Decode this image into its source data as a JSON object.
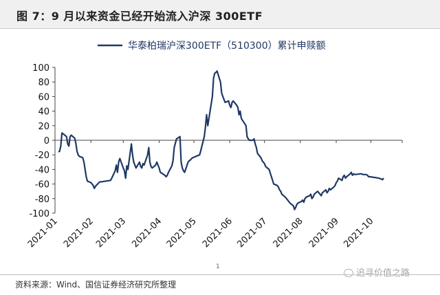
{
  "figure": {
    "title": "图 7：9 月以来资金已经开始流入沪深 300ETF",
    "source": "资料来源：Wind、国信证券经济研究所整理",
    "page_number": "1",
    "watermark": "追寻价值之路"
  },
  "chart_data": {
    "type": "line",
    "title": "",
    "xlabel": "",
    "ylabel": "",
    "ylim": [
      -100,
      100
    ],
    "yticks": [
      100,
      80,
      60,
      40,
      20,
      0,
      -20,
      -40,
      -60,
      -80,
      -100
    ],
    "xticks": [
      "2021-01",
      "2021-02",
      "2021-03",
      "2021-04",
      "2021-05",
      "2021-06",
      "2021-07",
      "2021-08",
      "2021-09",
      "2021-10"
    ],
    "legend_position": "top-center",
    "grid": false,
    "series": [
      {
        "name": "华泰柏瑞沪深300ETF（510300）累计申赎额",
        "color": "#1f3864",
        "points": [
          [
            "2021-01-04",
            -16
          ],
          [
            "2021-01-05",
            -15
          ],
          [
            "2021-01-06",
            -8
          ],
          [
            "2021-01-07",
            10
          ],
          [
            "2021-01-08",
            9
          ],
          [
            "2021-01-11",
            5
          ],
          [
            "2021-01-12",
            -5
          ],
          [
            "2021-01-13",
            -8
          ],
          [
            "2021-01-14",
            5
          ],
          [
            "2021-01-15",
            7
          ],
          [
            "2021-01-18",
            3
          ],
          [
            "2021-01-19",
            -4
          ],
          [
            "2021-01-20",
            -15
          ],
          [
            "2021-01-21",
            -20
          ],
          [
            "2021-01-22",
            -22
          ],
          [
            "2021-01-25",
            -24
          ],
          [
            "2021-01-26",
            -30
          ],
          [
            "2021-01-27",
            -40
          ],
          [
            "2021-01-28",
            -50
          ],
          [
            "2021-01-29",
            -56
          ],
          [
            "2021-02-01",
            -58
          ],
          [
            "2021-02-02",
            -60
          ],
          [
            "2021-02-03",
            -62
          ],
          [
            "2021-02-04",
            -66
          ],
          [
            "2021-02-05",
            -63
          ],
          [
            "2021-02-08",
            -58
          ],
          [
            "2021-02-09",
            -57
          ],
          [
            "2021-02-10",
            -57
          ],
          [
            "2021-02-18",
            -55
          ],
          [
            "2021-02-19",
            -52
          ],
          [
            "2021-02-22",
            -42
          ],
          [
            "2021-02-23",
            -34
          ],
          [
            "2021-02-24",
            -44
          ],
          [
            "2021-02-25",
            -30
          ],
          [
            "2021-02-26",
            -25
          ],
          [
            "2021-03-01",
            -38
          ],
          [
            "2021-03-02",
            -42
          ],
          [
            "2021-03-03",
            -52
          ],
          [
            "2021-03-04",
            -35
          ],
          [
            "2021-03-05",
            -40
          ],
          [
            "2021-03-08",
            -5
          ],
          [
            "2021-03-09",
            -20
          ],
          [
            "2021-03-10",
            -30
          ],
          [
            "2021-03-11",
            -34
          ],
          [
            "2021-03-12",
            -38
          ],
          [
            "2021-03-15",
            -30
          ],
          [
            "2021-03-16",
            -36
          ],
          [
            "2021-03-17",
            -38
          ],
          [
            "2021-03-18",
            -32
          ],
          [
            "2021-03-19",
            -34
          ],
          [
            "2021-03-22",
            -20
          ],
          [
            "2021-03-23",
            -10
          ],
          [
            "2021-03-24",
            -30
          ],
          [
            "2021-03-25",
            -36
          ],
          [
            "2021-03-26",
            -38
          ],
          [
            "2021-03-29",
            -34
          ],
          [
            "2021-03-30",
            -30
          ],
          [
            "2021-03-31",
            -34
          ],
          [
            "2021-04-01",
            -38
          ],
          [
            "2021-04-02",
            -44
          ],
          [
            "2021-04-06",
            -48
          ],
          [
            "2021-04-07",
            -50
          ],
          [
            "2021-04-08",
            -48
          ],
          [
            "2021-04-09",
            -44
          ],
          [
            "2021-04-12",
            -35
          ],
          [
            "2021-04-13",
            -28
          ],
          [
            "2021-04-14",
            -10
          ],
          [
            "2021-04-15",
            -4
          ],
          [
            "2021-04-16",
            2
          ],
          [
            "2021-04-19",
            5
          ],
          [
            "2021-04-20",
            -30
          ],
          [
            "2021-04-21",
            -38
          ],
          [
            "2021-04-22",
            -42
          ],
          [
            "2021-04-23",
            -44
          ],
          [
            "2021-04-26",
            -30
          ],
          [
            "2021-04-27",
            -28
          ],
          [
            "2021-04-28",
            -27
          ],
          [
            "2021-04-29",
            -25
          ],
          [
            "2021-04-30",
            -24
          ],
          [
            "2021-05-06",
            -20
          ],
          [
            "2021-05-07",
            -14
          ],
          [
            "2021-05-10",
            5
          ],
          [
            "2021-05-11",
            18
          ],
          [
            "2021-05-12",
            35
          ],
          [
            "2021-05-13",
            20
          ],
          [
            "2021-05-14",
            30
          ],
          [
            "2021-05-17",
            60
          ],
          [
            "2021-05-18",
            85
          ],
          [
            "2021-05-19",
            92
          ],
          [
            "2021-05-20",
            93
          ],
          [
            "2021-05-21",
            95
          ],
          [
            "2021-05-24",
            80
          ],
          [
            "2021-05-25",
            65
          ],
          [
            "2021-05-26",
            60
          ],
          [
            "2021-05-27",
            56
          ],
          [
            "2021-05-28",
            52
          ],
          [
            "2021-05-31",
            54
          ],
          [
            "2021-06-01",
            48
          ],
          [
            "2021-06-02",
            45
          ],
          [
            "2021-06-03",
            52
          ],
          [
            "2021-06-04",
            54
          ],
          [
            "2021-06-07",
            48
          ],
          [
            "2021-06-08",
            45
          ],
          [
            "2021-06-09",
            35
          ],
          [
            "2021-06-10",
            40
          ],
          [
            "2021-06-11",
            30
          ],
          [
            "2021-06-15",
            20
          ],
          [
            "2021-06-16",
            5
          ],
          [
            "2021-06-17",
            2
          ],
          [
            "2021-06-18",
            0
          ],
          [
            "2021-06-21",
            0
          ],
          [
            "2021-06-22",
            2
          ],
          [
            "2021-06-23",
            -5
          ],
          [
            "2021-06-24",
            -10
          ],
          [
            "2021-06-25",
            -18
          ],
          [
            "2021-06-28",
            -24
          ],
          [
            "2021-06-29",
            -28
          ],
          [
            "2021-06-30",
            -30
          ],
          [
            "2021-07-01",
            -32
          ],
          [
            "2021-07-02",
            -36
          ],
          [
            "2021-07-05",
            -40
          ],
          [
            "2021-07-06",
            -45
          ],
          [
            "2021-07-07",
            -50
          ],
          [
            "2021-07-08",
            -55
          ],
          [
            "2021-07-09",
            -60
          ],
          [
            "2021-07-12",
            -62
          ],
          [
            "2021-07-13",
            -64
          ],
          [
            "2021-07-14",
            -68
          ],
          [
            "2021-07-15",
            -70
          ],
          [
            "2021-07-16",
            -74
          ],
          [
            "2021-07-19",
            -78
          ],
          [
            "2021-07-20",
            -80
          ],
          [
            "2021-07-21",
            -82
          ],
          [
            "2021-07-22",
            -84
          ],
          [
            "2021-07-23",
            -86
          ],
          [
            "2021-07-26",
            -90
          ],
          [
            "2021-07-27",
            -95
          ],
          [
            "2021-07-28",
            -92
          ],
          [
            "2021-07-29",
            -88
          ],
          [
            "2021-07-30",
            -86
          ],
          [
            "2021-08-02",
            -84
          ],
          [
            "2021-08-03",
            -82
          ],
          [
            "2021-08-04",
            -85
          ],
          [
            "2021-08-05",
            -80
          ],
          [
            "2021-08-06",
            -78
          ],
          [
            "2021-08-09",
            -76
          ],
          [
            "2021-08-10",
            -74
          ],
          [
            "2021-08-11",
            -80
          ],
          [
            "2021-08-12",
            -78
          ],
          [
            "2021-08-13",
            -74
          ],
          [
            "2021-08-16",
            -70
          ],
          [
            "2021-08-17",
            -72
          ],
          [
            "2021-08-18",
            -74
          ],
          [
            "2021-08-19",
            -76
          ],
          [
            "2021-08-20",
            -72
          ],
          [
            "2021-08-23",
            -68
          ],
          [
            "2021-08-24",
            -72
          ],
          [
            "2021-08-25",
            -70
          ],
          [
            "2021-08-26",
            -66
          ],
          [
            "2021-08-27",
            -68
          ],
          [
            "2021-08-30",
            -64
          ],
          [
            "2021-08-31",
            -62
          ],
          [
            "2021-09-01",
            -58
          ],
          [
            "2021-09-02",
            -56
          ],
          [
            "2021-09-03",
            -52
          ],
          [
            "2021-09-06",
            -55
          ],
          [
            "2021-09-07",
            -50
          ],
          [
            "2021-09-08",
            -48
          ],
          [
            "2021-09-09",
            -52
          ],
          [
            "2021-09-10",
            -50
          ],
          [
            "2021-09-13",
            -46
          ],
          [
            "2021-09-14",
            -44
          ],
          [
            "2021-09-15",
            -48
          ],
          [
            "2021-09-16",
            -46
          ],
          [
            "2021-09-17",
            -47
          ],
          [
            "2021-09-22",
            -46
          ],
          [
            "2021-09-23",
            -46
          ],
          [
            "2021-09-24",
            -47
          ],
          [
            "2021-09-27",
            -47
          ],
          [
            "2021-09-28",
            -48
          ],
          [
            "2021-09-29",
            -50
          ],
          [
            "2021-09-30",
            -50
          ],
          [
            "2021-10-08",
            -52
          ],
          [
            "2021-10-11",
            -54
          ],
          [
            "2021-10-12",
            -52
          ]
        ]
      }
    ]
  }
}
